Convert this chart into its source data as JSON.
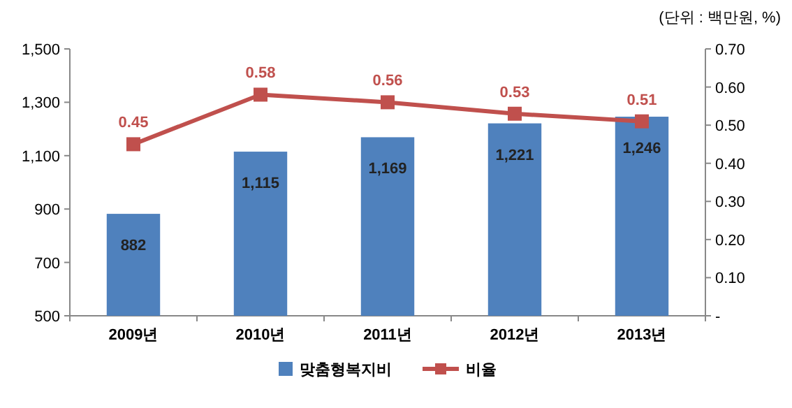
{
  "chart_data": {
    "type": "bar",
    "categories": [
      "2009년",
      "2010년",
      "2011년",
      "2012년",
      "2013년"
    ],
    "series": [
      {
        "name": "맞춤형복지비",
        "color": "#4f81bd",
        "values": [
          882,
          1115,
          1169,
          1221,
          1246
        ],
        "value_labels": [
          "882",
          "1,115",
          "1,169",
          "1,221",
          "1,246"
        ]
      },
      {
        "name": "비율",
        "type": "line",
        "axis": "y2",
        "color": "#c0504d",
        "marker": "square",
        "values": [
          0.45,
          0.58,
          0.56,
          0.53,
          0.51
        ],
        "value_labels": [
          "0.45",
          "0.58",
          "0.56",
          "0.53",
          "0.51"
        ]
      }
    ],
    "ylim": [
      500,
      1500
    ],
    "yticks": [
      500,
      700,
      900,
      {
        "value": 1100,
        "label": "1,100"
      },
      {
        "value": 1300,
        "label": "1,300"
      },
      {
        "value": 1500,
        "label": "1,500"
      }
    ],
    "y2lim": [
      0,
      0.7
    ],
    "y2ticks": [
      {
        "value": 0,
        "label": "-"
      },
      {
        "value": 0.1,
        "label": "0.10"
      },
      {
        "value": 0.2,
        "label": "0.20"
      },
      {
        "value": 0.3,
        "label": "0.30"
      },
      {
        "value": 0.4,
        "label": "0.40"
      },
      {
        "value": 0.5,
        "label": "0.50"
      },
      {
        "value": 0.6,
        "label": "0.60"
      },
      {
        "value": 0.7,
        "label": "0.70"
      }
    ],
    "annotations": [
      "(단위 : 백만원, %)"
    ],
    "legend": "bottom"
  }
}
